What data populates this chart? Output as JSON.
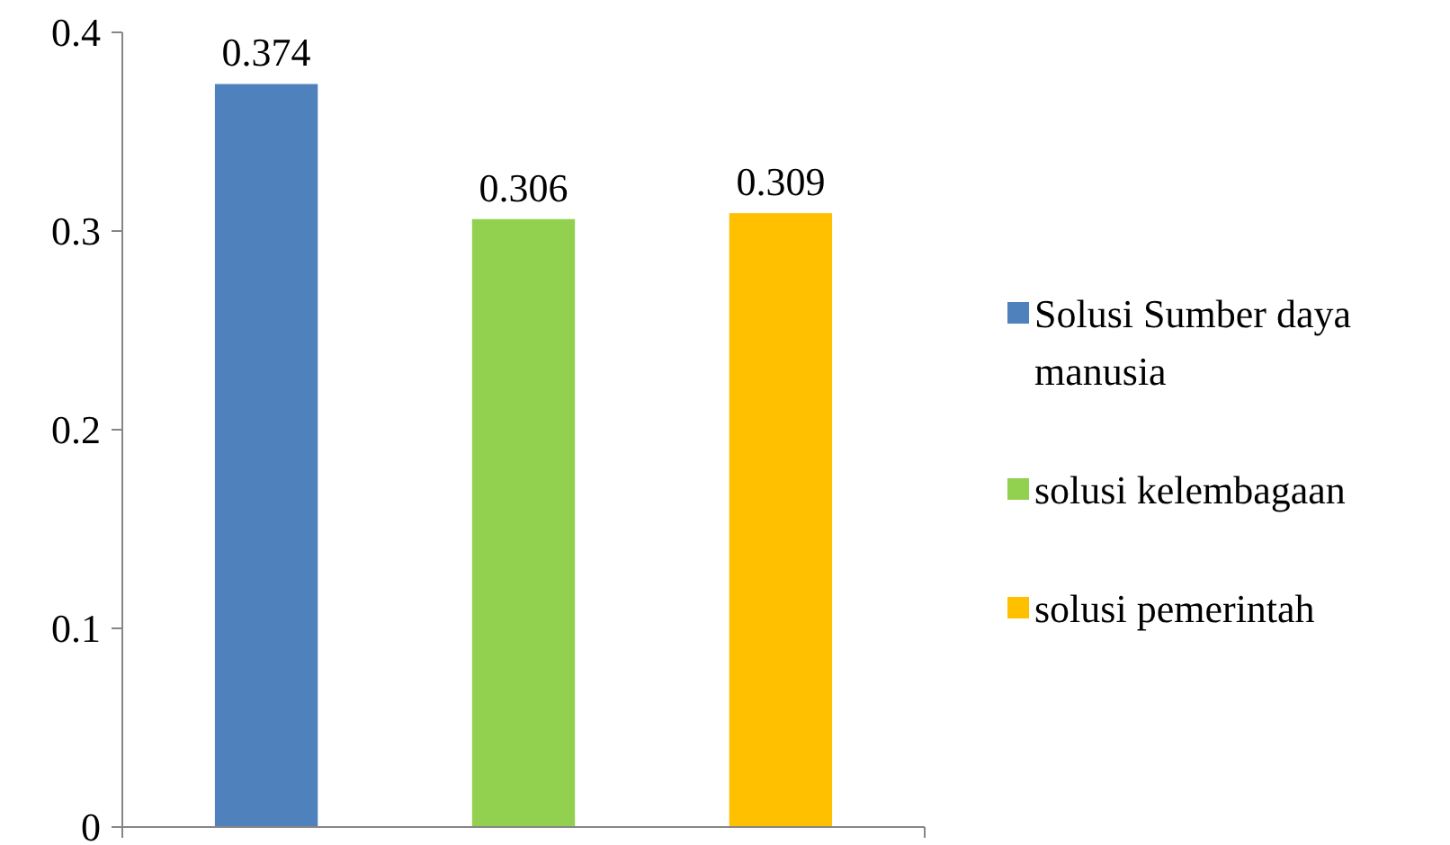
{
  "chart_data": {
    "type": "bar",
    "categories": [
      null
    ],
    "series": [
      {
        "name": "Solusi Sumber daya manusia",
        "color": "#4f81bd",
        "values": [
          0.374
        ]
      },
      {
        "name": "solusi kelembagaan",
        "color": "#92d050",
        "values": [
          0.306
        ]
      },
      {
        "name": "solusi pemerintah",
        "color": "#ffc000",
        "values": [
          0.309
        ]
      }
    ],
    "ylim": [
      0,
      0.4
    ],
    "yticks": [
      0,
      0.1,
      0.2,
      0.3,
      0.4
    ],
    "grid": false,
    "legend": "right",
    "data_labels": true
  }
}
